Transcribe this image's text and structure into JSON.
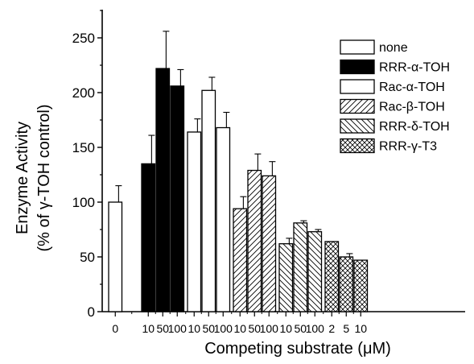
{
  "chart_data": {
    "type": "bar",
    "ylabel_line1": "Enzyme Activity",
    "ylabel_line2": "(% of γ-TOH control)",
    "xlabel": "Competing substrate (μM)",
    "ylim": [
      0,
      275
    ],
    "yticks": [
      0,
      50,
      100,
      150,
      200,
      250
    ],
    "legend_position": "top-right",
    "groups": [
      {
        "name": "none",
        "pattern": "none",
        "categories": [
          "0"
        ],
        "values": [
          100
        ],
        "errors": [
          15
        ]
      },
      {
        "name": "RRR-α-TOH",
        "pattern": "solid",
        "categories": [
          "10",
          "50",
          "100"
        ],
        "values": [
          135,
          222,
          206
        ],
        "errors": [
          26,
          34,
          15
        ]
      },
      {
        "name": "Rac-α-TOH",
        "pattern": "none",
        "categories": [
          "10",
          "50",
          "100"
        ],
        "values": [
          164,
          202,
          168
        ],
        "errors": [
          12,
          12,
          14
        ]
      },
      {
        "name": "Rac-β-TOH",
        "pattern": "forward-hatch",
        "categories": [
          "10",
          "50",
          "100"
        ],
        "values": [
          94,
          129,
          124
        ],
        "errors": [
          11,
          15,
          13
        ]
      },
      {
        "name": "RRR-δ-TOH",
        "pattern": "back-hatch",
        "categories": [
          "10",
          "50",
          "100"
        ],
        "values": [
          62,
          81,
          73
        ],
        "errors": [
          5,
          2,
          2
        ]
      },
      {
        "name": "RRR-γ-T3",
        "pattern": "cross-hatch",
        "categories": [
          "2",
          "5",
          "10"
        ],
        "values": [
          64,
          50,
          47
        ],
        "errors": [
          0,
          3,
          0
        ]
      }
    ]
  }
}
